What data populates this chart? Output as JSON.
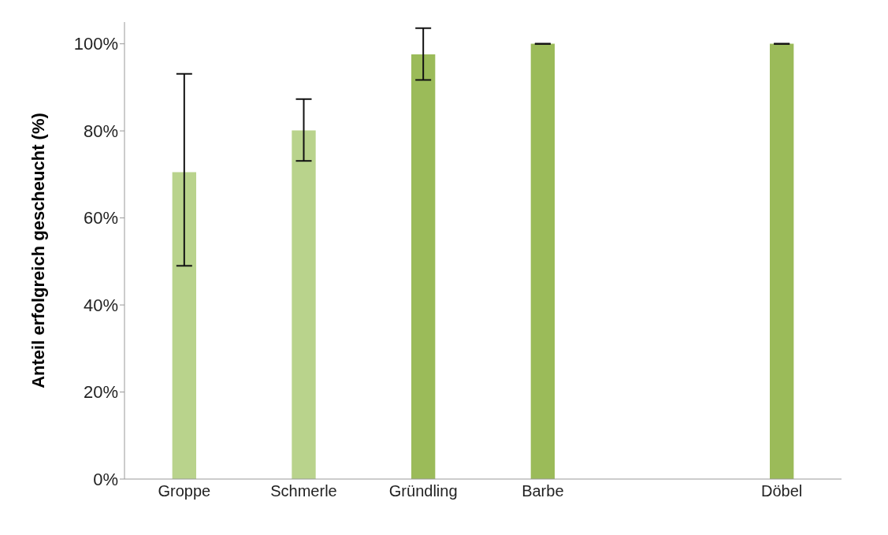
{
  "chart_data": {
    "type": "bar",
    "ylabel": "Anteil erfolgreich gescheucht (%)",
    "categories": [
      "Groppe",
      "Schmerle",
      "Gründling",
      "Barbe",
      null,
      "Döbel"
    ],
    "values": [
      70.5,
      80.1,
      97.6,
      100,
      null,
      100
    ],
    "colors": [
      "#b9d38c",
      "#b9d38c",
      "#9bbb59",
      "#9bbb59",
      "#9bbb59",
      "#9bbb59"
    ],
    "errors": [
      [
        49,
        93.1
      ],
      [
        73.1,
        87.3
      ],
      [
        91.7,
        103.6
      ],
      0,
      null,
      0
    ],
    "ylim": [
      0,
      105
    ],
    "yticks": [
      {
        "value": 0,
        "label": "0%"
      },
      {
        "value": 20,
        "label": "20%"
      },
      {
        "value": 40,
        "label": "40%"
      },
      {
        "value": 60,
        "label": "60%"
      },
      {
        "value": 80,
        "label": "80%"
      },
      {
        "value": 100,
        "label": "100%"
      }
    ],
    "grid": false,
    "legend": false
  }
}
